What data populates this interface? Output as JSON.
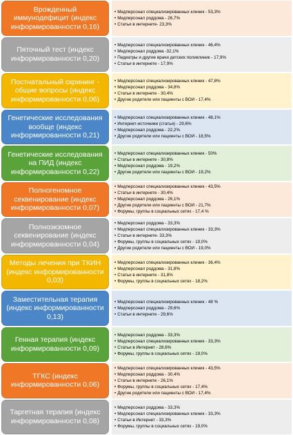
{
  "rows": [
    {
      "label": "Врожденный иммунодефицит (индекс информированности 0,16)",
      "items": [
        "Медперсонал специализированных клиник - 53,3%",
        "Медперсонал роддома - 26,7%",
        "Статьи в интернете- 23,3%"
      ]
    },
    {
      "label": "Пяточный тест (индекс информированности 0,20)",
      "items": [
        "Медперсонал специализированных клиник - 46,4%",
        "Медперсонал роддома -32,1%",
        "Педиатры и другие врачи детских поликлиник - 17,9%",
        "Статьи в интернете - 17,9%"
      ]
    },
    {
      "label": "Постнатальный скрининг - общие вопросы (индекс информированности 0,06)",
      "items": [
        "Медперсонал специализированных клиник - 47,8%",
        "Медперсонал роддома - 34,8%",
        "Статьи в интернете - 30,4%",
        "Другие родители или пациенты с ВОИ - 17,4%"
      ]
    },
    {
      "label": "Генетические исследования вообще (индекс информированности 0,21)",
      "items": [
        "Медперсонал специализированных клиник - 48,1%",
        "Интернет-источники (статьи) - 29,6%",
        "Медперсонал роддома - 22,2%",
        "Другие родители или пациенты с ВОИ - 18,5%"
      ]
    },
    {
      "label": "Генетические исследования на ПИД (индекс информированности 0,22)",
      "items": [
        "Медперсонал специализированных клиник - 50%",
        "Статьи в интернете - 30,8%",
        "Медперсонал роддома - 19,2%",
        "Другие родители или пациенты с ВОИ - 19,2%"
      ]
    },
    {
      "label": "Полногеномное секвенирование (индекс информированности 0,07)",
      "items": [
        "Медперсонал специализированных клиник - 43,5%",
        "Статьи в интернете - 30,4%",
        "Медперсонал роддома - 26,1%",
        "Другие родители или пациенты с ВОИ - 21,7%",
        "Форумы, группы в социальных сетях - 17,4 %"
      ]
    },
    {
      "label": "Полноэкзомное секвенирование (индекс информированности 0,04)",
      "items": [
        "Медперсонал роддома - 33,3%",
        "Медперсонал специализированных клиник - 33,3%",
        "Статьи в интернете- 33,3%",
        "Форумы, группы в социальных сетях - 19,0%",
        "Другие родители или пациенты с ВОИ - 19,0%"
      ]
    },
    {
      "label": "Методы лечения при ТКИН (индекс информированности 0,03)",
      "items": [
        "Медперсонал специализированных клиник - 36,4%",
        "Медперсонал роддома - 31,8%",
        "Статьи в интернете - 31,8%",
        "Форумы, группы в социальных сетях - 18,2%"
      ]
    },
    {
      "label": "Заместительная терапия (индекс информированности 0,13)",
      "items": [
        "Медперсонал специализированных клиник - 48 %",
        "Медперсонал роддома - 29,6%",
        "Статьи в интернете - 29,6%"
      ]
    },
    {
      "label": "Генная терапия (индекс информированности 0,09)",
      "items": [
        "Медперсонал роддома - 33,3%",
        "Медперсонал специализированных клиник - 33,3%",
        "Статьи в Интернет - 28,6%",
        "Форумы, группы в социальных сетях - 19,0%"
      ]
    },
    {
      "label": "ТГКС (индекс информированности 0,06)",
      "items": [
        "Медперсонал специализированных клиник - 43,5%",
        "Медперсонал роддома - 30,4%",
        "Статьи в интернете - 26,1%",
        "Форумы, группы в социальных сетях - 17,4%",
        "Другие родители или пациенты с ВОИ - 17,4%"
      ]
    },
    {
      "label": "Таргетная терапия (индекс информированности 0,08)",
      "items": [
        "Медперсонал роддома - 33,3%",
        "Медперсонал специализированных клиник - 33,3%",
        "Статьи в Интернет - 33,3%",
        "Форумы, группы в социальных сетях - 19,0%"
      ]
    }
  ]
}
